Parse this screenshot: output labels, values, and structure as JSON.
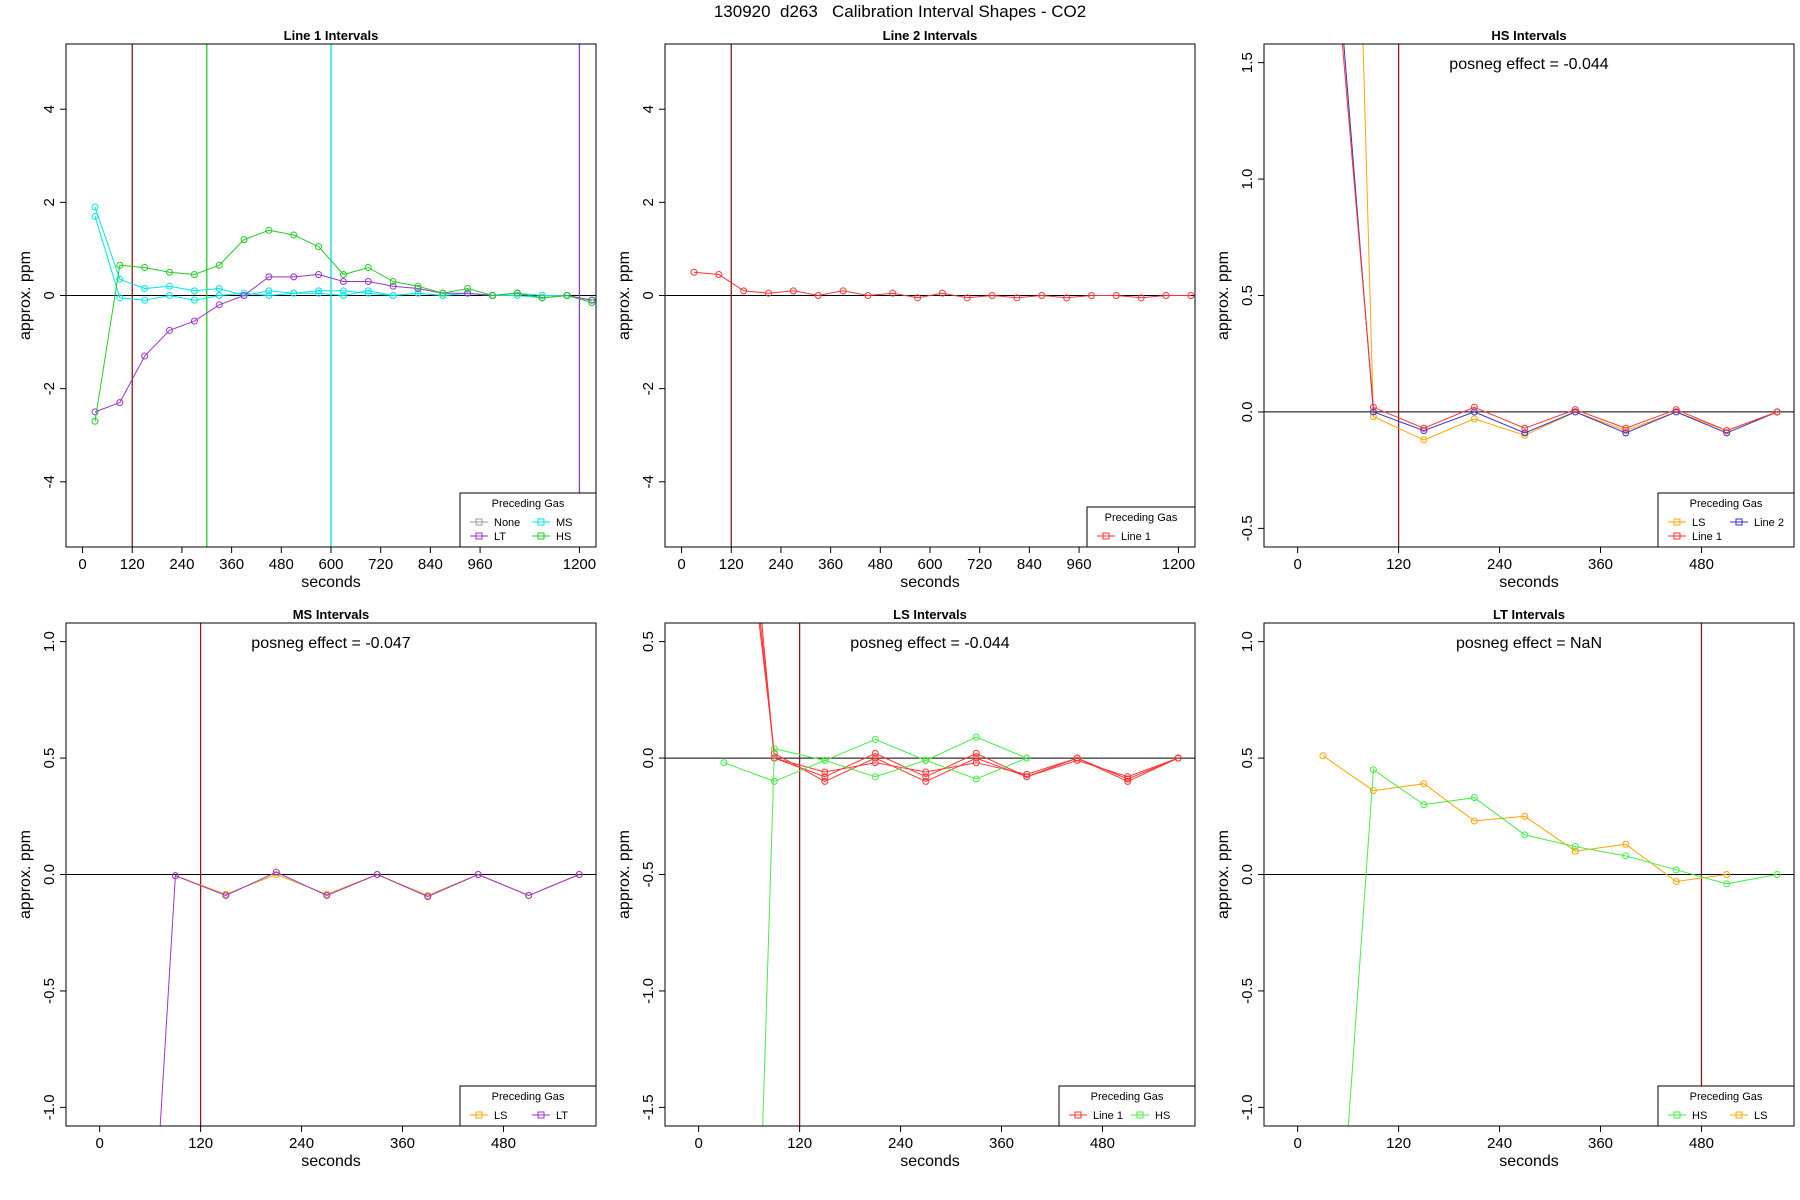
{
  "title": "130920  d263   Calibration Interval Shapes - CO2",
  "chart_data": [
    {
      "type": "line",
      "title": "Line 1 Intervals",
      "xlabel": "seconds",
      "ylabel": "approx. ppm",
      "xlim": [
        -40,
        1240
      ],
      "ylim": [
        -5.4,
        5.4
      ],
      "xticks": [
        0,
        120,
        240,
        360,
        480,
        600,
        720,
        840,
        960,
        1200
      ],
      "yticks": [
        -4,
        -2,
        0,
        2,
        4
      ],
      "vlines": [
        {
          "x": 120,
          "color": "#8b1a1a"
        },
        {
          "x": 300,
          "color": "#22cc22"
        },
        {
          "x": 600,
          "color": "#00dddd"
        },
        {
          "x": 1200,
          "color": "#9933cc"
        }
      ],
      "annotation": "",
      "legend": {
        "title": "Preceding Gas",
        "position": "bottom-right",
        "columns": 2,
        "entries": [
          {
            "label": "None",
            "color": "#999999"
          },
          {
            "label": "MS",
            "color": "#00e5e5"
          },
          {
            "label": "LT",
            "color": "#9933cc"
          },
          {
            "label": "HS",
            "color": "#22cc22"
          }
        ]
      },
      "series": [
        {
          "color": "#00e5e5",
          "x": [
            30,
            90,
            150,
            210,
            270,
            330,
            390,
            450,
            510,
            570,
            630,
            690,
            750,
            810,
            870,
            930,
            990,
            1050,
            1110,
            1170,
            1230
          ],
          "y": [
            1.9,
            0.35,
            0.15,
            0.2,
            0.1,
            0.15,
            0.0,
            0.1,
            0.05,
            0.1,
            0.1,
            0.05,
            0.0,
            0.05,
            0.0,
            0.05,
            0.0,
            0.05,
            0.0,
            0.0,
            -0.1
          ]
        },
        {
          "color": "#00e5e5",
          "x": [
            30,
            90,
            150,
            210,
            270,
            330,
            390,
            450,
            510,
            570,
            630,
            690,
            750,
            810,
            870,
            930,
            990,
            1050,
            1110,
            1170,
            1230
          ],
          "y": [
            1.7,
            -0.05,
            -0.1,
            0.0,
            -0.1,
            0.0,
            0.05,
            0.0,
            0.05,
            0.05,
            0.0,
            0.1,
            0.0,
            0.05,
            0.0,
            0.05,
            0.0,
            0.0,
            -0.05,
            0.0,
            -0.1
          ]
        },
        {
          "color": "#9933cc",
          "x": [
            30,
            90,
            150,
            210,
            270,
            330,
            390,
            450,
            510,
            570,
            630,
            690,
            750,
            810,
            870,
            930,
            990,
            1050,
            1110,
            1170,
            1230
          ],
          "y": [
            -2.5,
            -2.3,
            -1.3,
            -0.75,
            -0.55,
            -0.2,
            0.0,
            0.4,
            0.4,
            0.45,
            0.3,
            0.3,
            0.2,
            0.15,
            0.05,
            0.05,
            0.0,
            0.05,
            -0.05,
            0.0,
            -0.1
          ]
        },
        {
          "color": "#22cc22",
          "x": [
            30,
            90,
            150,
            210,
            270,
            330,
            390,
            450,
            510,
            570,
            630,
            690,
            750,
            810,
            870,
            930,
            990,
            1050,
            1110,
            1170,
            1230
          ],
          "y": [
            -2.7,
            0.65,
            0.6,
            0.5,
            0.45,
            0.65,
            1.2,
            1.4,
            1.3,
            1.05,
            0.45,
            0.6,
            0.3,
            0.2,
            0.05,
            0.15,
            0.0,
            0.05,
            -0.05,
            0.0,
            -0.15
          ]
        }
      ]
    },
    {
      "type": "line",
      "title": "Line 2 Intervals",
      "xlabel": "seconds",
      "ylabel": "approx. ppm",
      "xlim": [
        -40,
        1240
      ],
      "ylim": [
        -5.4,
        5.4
      ],
      "xticks": [
        0,
        120,
        240,
        360,
        480,
        600,
        720,
        840,
        960,
        1200
      ],
      "yticks": [
        -4,
        -2,
        0,
        2,
        4
      ],
      "vlines": [
        {
          "x": 120,
          "color": "#8b1a1a"
        }
      ],
      "annotation": "",
      "legend": {
        "title": "Preceding Gas",
        "position": "bottom-right",
        "columns": 1,
        "entries": [
          {
            "label": "Line 1",
            "color": "#ff3333"
          }
        ]
      },
      "series": [
        {
          "color": "#ff3333",
          "x": [
            30,
            90,
            150,
            210,
            270,
            330,
            390,
            450,
            510,
            570,
            630,
            690,
            750,
            810,
            870,
            930,
            990,
            1050,
            1110,
            1170,
            1230
          ],
          "y": [
            0.5,
            0.45,
            0.1,
            0.05,
            0.1,
            0.0,
            0.1,
            0.0,
            0.05,
            -0.05,
            0.05,
            -0.05,
            0.0,
            -0.05,
            0.0,
            -0.05,
            0.0,
            0.0,
            -0.05,
            0.0,
            0.0
          ]
        }
      ]
    },
    {
      "type": "line",
      "title": "HS Intervals",
      "xlabel": "seconds",
      "ylabel": "approx. ppm",
      "xlim": [
        -40,
        590
      ],
      "ylim": [
        -0.58,
        1.58
      ],
      "xticks": [
        0,
        120,
        240,
        360,
        480
      ],
      "yticks": [
        -0.5,
        0.0,
        0.5,
        1.0,
        1.5
      ],
      "vlines": [
        {
          "x": 120,
          "color": "#8b1a1a"
        }
      ],
      "annotation": "posneg effect = -0.044",
      "legend": {
        "title": "Preceding Gas",
        "position": "bottom-right",
        "columns": 2,
        "entries": [
          {
            "label": "LS",
            "color": "#ffa500"
          },
          {
            "label": "Line 2",
            "color": "#3333cc"
          },
          {
            "label": "Line 1",
            "color": "#ff3333"
          }
        ]
      },
      "series": [
        {
          "color": "#ffa500",
          "x": [
            76,
            90,
            150,
            210,
            270,
            330,
            390,
            450,
            510,
            570
          ],
          "y": [
            1.8,
            -0.02,
            -0.12,
            -0.03,
            -0.1,
            0.0,
            -0.08,
            0.0,
            -0.08,
            0.0
          ]
        },
        {
          "color": "#3333cc",
          "x": [
            50,
            90,
            150,
            210,
            270,
            330,
            390,
            450,
            510,
            570
          ],
          "y": [
            1.8,
            0.0,
            -0.08,
            0.0,
            -0.09,
            0.0,
            -0.09,
            0.0,
            -0.09,
            0.0
          ]
        },
        {
          "color": "#ff3333",
          "x": [
            48,
            90,
            150,
            210,
            270,
            330,
            390,
            450,
            510,
            570
          ],
          "y": [
            1.8,
            0.02,
            -0.07,
            0.02,
            -0.07,
            0.01,
            -0.07,
            0.01,
            -0.08,
            0.0
          ]
        }
      ]
    },
    {
      "type": "line",
      "title": "MS Intervals",
      "xlabel": "seconds",
      "ylabel": "approx. ppm",
      "xlim": [
        -40,
        590
      ],
      "ylim": [
        -1.08,
        1.08
      ],
      "xticks": [
        0,
        120,
        240,
        360,
        480
      ],
      "yticks": [
        -1.0,
        -0.5,
        0.0,
        0.5,
        1.0
      ],
      "vlines": [
        {
          "x": 120,
          "color": "#8b1a1a"
        }
      ],
      "annotation": "posneg effect = -0.047",
      "legend": {
        "title": "Preceding Gas",
        "position": "bottom-right",
        "columns": 2,
        "entries": [
          {
            "label": "LS",
            "color": "#ffa500"
          },
          {
            "label": "LT",
            "color": "#9933cc"
          }
        ]
      },
      "series": [
        {
          "color": "#ffa500",
          "x": [
            90,
            150,
            210,
            270,
            330,
            390,
            450,
            510,
            570
          ],
          "y": [
            -0.005,
            -0.085,
            0.0,
            -0.085,
            0.0,
            -0.09,
            0.0,
            -0.09,
            0.0
          ]
        },
        {
          "color": "#9933cc",
          "x": [
            70,
            90,
            150,
            210,
            270,
            330,
            390,
            450,
            510,
            570
          ],
          "y": [
            -1.2,
            -0.005,
            -0.09,
            0.01,
            -0.09,
            0.0,
            -0.095,
            0.0,
            -0.09,
            0.0
          ]
        }
      ]
    },
    {
      "type": "line",
      "title": "LS Intervals",
      "xlabel": "seconds",
      "ylabel": "approx. ppm",
      "xlim": [
        -40,
        590
      ],
      "ylim": [
        -1.58,
        0.58
      ],
      "xticks": [
        0,
        120,
        240,
        360,
        480
      ],
      "yticks": [
        -1.5,
        -1.0,
        -0.5,
        0.0,
        0.5
      ],
      "vlines": [
        {
          "x": 120,
          "color": "#8b1a1a"
        }
      ],
      "annotation": "posneg effect = -0.044",
      "legend": {
        "title": "Preceding Gas",
        "position": "bottom-right",
        "columns": 2,
        "entries": [
          {
            "label": "Line 1",
            "color": "#ff3333"
          },
          {
            "label": "HS",
            "color": "#44ee44"
          }
        ]
      },
      "series": [
        {
          "color": "#ff3333",
          "x": [
            68,
            90,
            150,
            210,
            270,
            330,
            390,
            450,
            510,
            570
          ],
          "y": [
            0.7,
            0.02,
            -0.1,
            0.0,
            -0.1,
            0.0,
            -0.08,
            0.0,
            -0.1,
            0.0
          ]
        },
        {
          "color": "#ff3333",
          "x": [
            70,
            90,
            150,
            210,
            270,
            330,
            390,
            450,
            510,
            570
          ],
          "y": [
            0.7,
            0.0,
            -0.08,
            0.02,
            -0.08,
            0.02,
            -0.08,
            -0.01,
            -0.08,
            0.0
          ]
        },
        {
          "color": "#ff3333",
          "x": [
            72,
            90,
            150,
            210,
            270,
            330,
            390,
            450,
            510,
            570
          ],
          "y": [
            0.7,
            0.0,
            -0.06,
            -0.02,
            -0.06,
            -0.02,
            -0.07,
            0.0,
            -0.09,
            0.0
          ]
        },
        {
          "color": "#44ee44",
          "x": [
            30,
            90,
            150,
            210,
            270,
            330,
            390
          ],
          "y": [
            -0.02,
            -0.1,
            -0.01,
            0.08,
            -0.01,
            0.09,
            0.0
          ]
        },
        {
          "color": "#44ee44",
          "x": [
            76,
            90,
            150,
            210,
            270,
            330,
            390
          ],
          "y": [
            -1.6,
            0.04,
            -0.01,
            -0.08,
            -0.01,
            -0.09,
            0.0
          ]
        }
      ]
    },
    {
      "type": "line",
      "title": "LT Intervals",
      "xlabel": "seconds",
      "ylabel": "approx. ppm",
      "xlim": [
        -40,
        590
      ],
      "ylim": [
        -1.08,
        1.08
      ],
      "xticks": [
        0,
        120,
        240,
        360,
        480
      ],
      "yticks": [
        -1.0,
        -0.5,
        0.0,
        0.5,
        1.0
      ],
      "vlines": [
        {
          "x": 480,
          "color": "#8b1a1a"
        }
      ],
      "annotation": "posneg effect = NaN",
      "legend": {
        "title": "Preceding Gas",
        "position": "bottom-right",
        "columns": 2,
        "entries": [
          {
            "label": "HS",
            "color": "#44ee44"
          },
          {
            "label": "LS",
            "color": "#ffa500"
          }
        ]
      },
      "series": [
        {
          "color": "#ffa500",
          "x": [
            30,
            90,
            150,
            210,
            270,
            330,
            390,
            450,
            510
          ],
          "y": [
            0.51,
            0.36,
            0.39,
            0.23,
            0.25,
            0.1,
            0.13,
            -0.03,
            0.0
          ]
        },
        {
          "color": "#44ee44",
          "x": [
            58,
            90,
            150,
            210,
            270,
            330,
            390,
            450,
            510,
            570
          ],
          "y": [
            -1.2,
            0.45,
            0.3,
            0.33,
            0.17,
            0.12,
            0.08,
            0.02,
            -0.04,
            0.0
          ]
        }
      ]
    }
  ]
}
